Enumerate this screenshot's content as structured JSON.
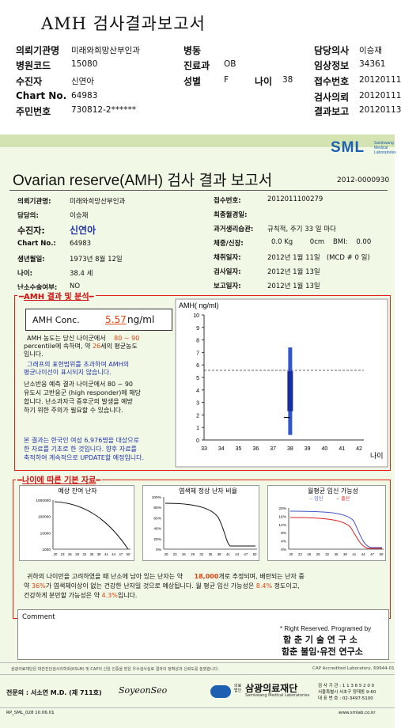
{
  "page_title": "AMH 검사결과보고서",
  "header": {
    "rows": [
      {
        "l1": "의뢰기관명",
        "v1": "미래와희망산부인과",
        "l2": "병동",
        "v2": "",
        "l3": "담당의사",
        "v3": "이승재"
      },
      {
        "l1": "병원코드",
        "v1": "15080",
        "l2": "진료과",
        "v2": "OB",
        "l3": "임상정보",
        "v3": "34361"
      },
      {
        "l1": "수진자",
        "v1": "신연아",
        "l2": "성별",
        "v2": "F",
        "l3": "접수번호",
        "v3": "20120111"
      },
      {
        "l1": "Chart No.",
        "v1": "64983",
        "l2": "",
        "v2": "",
        "l3": "검사의뢰",
        "v3": "20120111"
      },
      {
        "l1": "주민번호",
        "v1": "730812-2******",
        "l2": "",
        "v2": "",
        "l3": "결과보고",
        "v3": "20120113"
      }
    ],
    "age_label": "나이",
    "age_value": "38"
  },
  "logo": {
    "text": "SML",
    "sub": "Samkwang Medical Laboratories"
  },
  "report": {
    "title": "Ovarian reserve(AMH) 검사 결과 보고서",
    "number": "2012-0000930",
    "left": [
      {
        "label": "의뢰기관명:",
        "value": "미래와희망산부인과"
      },
      {
        "label": "담당의:",
        "value": "이승재"
      },
      {
        "label": "수진자:",
        "value": "신연아"
      },
      {
        "label": "Chart No.:",
        "value": "64983"
      },
      {
        "label": "생년월일:",
        "value": "1973년 8월 12일"
      },
      {
        "label": "나이:",
        "value": "38.4 세"
      },
      {
        "label": "난소수술여부:",
        "value": "NO"
      }
    ],
    "right": [
      {
        "label": "접수번호:",
        "value": "2012011100279"
      },
      {
        "label": "최종월경일:",
        "value": ""
      },
      {
        "label": "과거생리습관:",
        "value": "규칙적,  주기  33 일  마다"
      },
      {
        "label": "체중/신장:",
        "value": "0.0 Kg        0cm    BMI:    0.00"
      },
      {
        "label": "채취일자:",
        "value": "2012년 1월 11일   (MCD # 0 일)"
      },
      {
        "label": "검사일자:",
        "value": "2012년 1월 13일"
      },
      {
        "label": "보고일자:",
        "value": "2012년 1월 13일"
      }
    ]
  },
  "analysis": {
    "section_title": "AMH 결과 및 분석",
    "conc_label": "AMH Conc.",
    "conc_value": "5.57",
    "conc_unit": "ng/ml",
    "p1_a": "AMH 농도는 당신 나이군에서",
    "p1_range": "80 ~ 90",
    "p1_b": "percentile에 속하며, 약",
    "p1_age": "26",
    "p1_c": "세의 평균농도",
    "p1_d": "입니다.",
    "p2": [
      "그래프의 표현범위를 초과하여 AMH의",
      "평균나이선이 표시되지 않습니다."
    ],
    "p3": [
      "난소반응 예측 결과 나이군에서 80 ~ 90",
      "유도시 고반응군 (high responder)에 해당",
      "합니다. 난소과자극 증후군의 발생을 예방",
      "하기 위한 주의가 필요할 수 있습니다."
    ],
    "p4": [
      "본 결과는 한국인 여성 6,976명을 대상으로",
      "한 자료를 기초로 한 것입니다. 향후 자료를",
      "축적하여 계속적으로 UPDATE할 예정입니다."
    ]
  },
  "chart_data": [
    {
      "type": "bar",
      "title": "",
      "ylabel": "AMH( ng/ml)",
      "xlabel": "나이",
      "ylim": [
        0,
        10
      ],
      "yticks": [
        "0",
        "1",
        "2",
        "3",
        "4",
        "5",
        "6",
        "7",
        "8",
        "9",
        "10"
      ],
      "xticks": [
        "33",
        "34",
        "35",
        "36",
        "37",
        "38",
        "39",
        "40",
        "41",
        "42"
      ],
      "range_bar": {
        "age": 38,
        "low": 0.4,
        "high": 7.4
      },
      "median_bar": {
        "age": 38,
        "low": 2.3,
        "high": 5.5
      },
      "patient_value": 5.57,
      "marker_value": 1.8,
      "grid": false
    },
    {
      "type": "line",
      "title": "예상 잔여 난자",
      "yticks": [
        "1000000",
        "100000",
        "10000",
        "1000"
      ],
      "xticks": [
        "20",
        "23",
        "26",
        "29",
        "32",
        "35",
        "38",
        "41",
        "44",
        "47",
        "50"
      ]
    },
    {
      "type": "line",
      "title": "염색체 정상 난자 비율",
      "yticks": [
        "100%",
        "80%",
        "60%",
        "40%",
        "20%",
        "0%"
      ],
      "xticks": [
        "20",
        "23",
        "26",
        "29",
        "32",
        "35",
        "38",
        "41",
        "44",
        "47",
        "50"
      ]
    },
    {
      "type": "line",
      "title": "월평균 임신 가능성",
      "legend": [
        "임신",
        "출산"
      ],
      "legend_colors": [
        "#4455cc",
        "#dd2222"
      ],
      "yticks": [
        "20%",
        "16%",
        "12%",
        "8%",
        "4%",
        "0%"
      ],
      "xticks": [
        "20",
        "23",
        "26",
        "29",
        "32",
        "35",
        "38",
        "41",
        "44",
        "47",
        "50"
      ]
    }
  ],
  "basic": {
    "section_title": "나이에 따른 기본 자료",
    "s1_a": "귀하의 나이만을 고려하였을 때 난소에 남아 있는 난자는 약",
    "s1_v": "18,000",
    "s1_b": "개로 추정되며, 배란되는 난자 중",
    "s2_a": "약",
    "s2_v": "36%",
    "s2_b": "가 염색체이상이 없는 건강한 난자일 것으로 예상됩니다. 월 평균 임신 가능성은",
    "s2_v2": "8.4%",
    "s2_c": "정도이고,",
    "s3_a": "건강하게 분만할 가능성은 약",
    "s3_v": "4.3%",
    "s3_b": "입니다."
  },
  "comment": {
    "label": "Comment",
    "right_reserved": "* Right Reserved. Programed by",
    "org1": "함 춘  기 술  연 구 소",
    "org2": "함춘 불임·유전 연구소"
  },
  "footer": {
    "cert": "삼광의료재단은 대한진단검사의학회(KSLM) 및 CAP의 신임 인증을 받은 우수검사실로 결과의 정확성과 신뢰도를 높였습니다.",
    "cap": "CAP Accredited Laboratory, 69944-01",
    "doctor": "전문의 : 서소연 M.D. (제 711호)",
    "signature": "SoyeonSeo",
    "foundation_small": "의료법인",
    "foundation": "삼광의료재단",
    "foundation_en": "Samkwang Medical Laboratories",
    "inquiry": "검 사 기 관 : 1 1 3 6 5 2 0 0",
    "address": "서울특별시 서초구 양재동 9-60",
    "phone": "대 표 번 호 : 02-3497-5100",
    "form_code": "RP_SML_028  10.06.01",
    "website": "www.smlab.co.kr"
  }
}
